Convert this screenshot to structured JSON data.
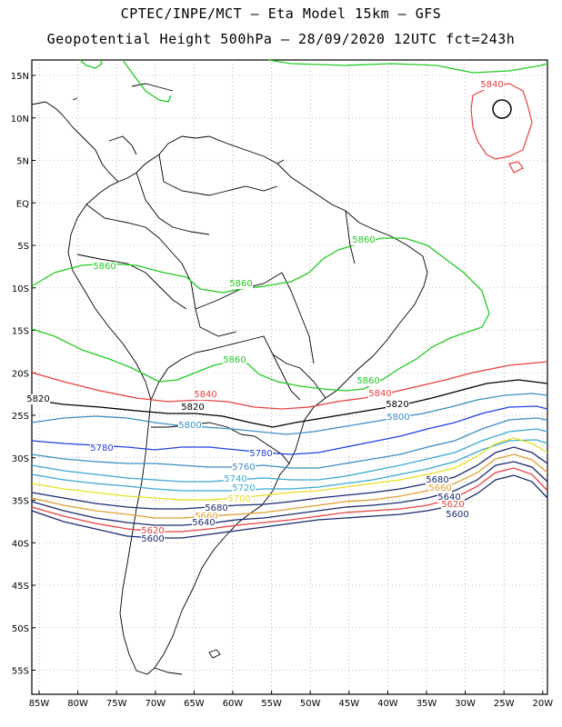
{
  "title": {
    "line1": "CPTEC/INPE/MCT –  Eta Model 15km – GFS",
    "line2": "Geopotential Height 500hPa – 28/09/2020 12UTC fct=243h"
  },
  "lat_ticks": [
    "15N",
    "10N",
    "5N",
    "EQ",
    "5S",
    "10S",
    "15S",
    "20S",
    "25S",
    "30S",
    "35S",
    "40S",
    "45S",
    "50S",
    "55S"
  ],
  "lon_ticks": [
    "85W",
    "80W",
    "75W",
    "70W",
    "65W",
    "60W",
    "55W",
    "50W",
    "45W",
    "40W",
    "35W",
    "30W",
    "25W",
    "20W"
  ],
  "contour_labels": [
    {
      "text": "5840",
      "color": "#e84040"
    },
    {
      "text": "5860",
      "color": "#22cc22"
    },
    {
      "text": "5860",
      "color": "#22cc22"
    },
    {
      "text": "5860",
      "color": "#22cc22"
    },
    {
      "text": "5860",
      "color": "#22cc22"
    },
    {
      "text": "5860",
      "color": "#22cc22"
    },
    {
      "text": "5840",
      "color": "#e84040"
    },
    {
      "text": "5840",
      "color": "#e84040"
    },
    {
      "text": "5820",
      "color": "#000000"
    },
    {
      "text": "5820",
      "color": "#000000"
    },
    {
      "text": "5820",
      "color": "#000000"
    },
    {
      "text": "5800",
      "color": "#3a8fc0"
    },
    {
      "text": "5800",
      "color": "#3a8fc0"
    },
    {
      "text": "5780",
      "color": "#2040e0"
    },
    {
      "text": "5780",
      "color": "#2040e0"
    },
    {
      "text": "5760",
      "color": "#3a8fc0"
    },
    {
      "text": "5740",
      "color": "#3aa8d0"
    },
    {
      "text": "5720",
      "color": "#3aa8d0"
    },
    {
      "text": "5700",
      "color": "#e8e020"
    },
    {
      "text": "5680",
      "color": "#1a2a70"
    },
    {
      "text": "5680",
      "color": "#1a2a70"
    },
    {
      "text": "5660",
      "color": "#e0a030"
    },
    {
      "text": "5660",
      "color": "#e0a030"
    },
    {
      "text": "5640",
      "color": "#1a2a70"
    },
    {
      "text": "5640",
      "color": "#1a2a70"
    },
    {
      "text": "5620",
      "color": "#e84040"
    },
    {
      "text": "5620",
      "color": "#e84040"
    },
    {
      "text": "5600",
      "color": "#1a2a70"
    },
    {
      "text": "5600",
      "color": "#1a2a70"
    }
  ],
  "colors": {
    "c5860": "#22cc22",
    "c5840": "#e84040",
    "c5820": "#000000",
    "c5800": "#3a8fc0",
    "c5780": "#2040e0",
    "c5760": "#3a8fc0",
    "c5740": "#3aa8d0",
    "c5720": "#3aa8d0",
    "c5700": "#e8e020",
    "c5680": "#1a2a70",
    "c5660": "#e0a030",
    "c5640": "#1a2a70",
    "c5620": "#e84040",
    "c5600": "#1a2a70"
  }
}
